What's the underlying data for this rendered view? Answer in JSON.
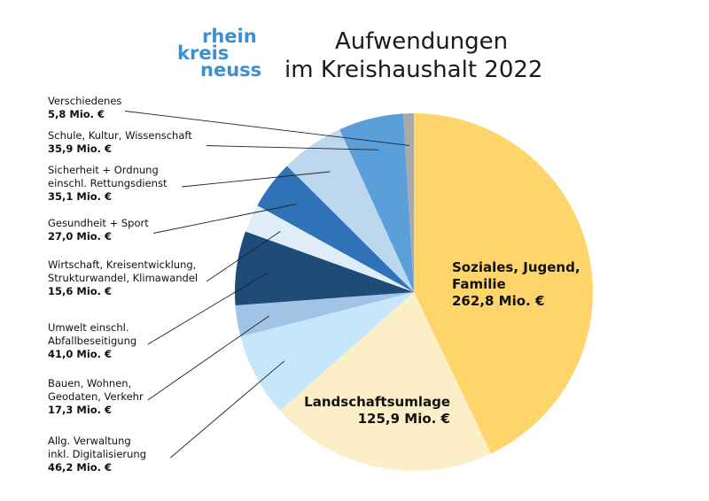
{
  "logo": {
    "line1": "rhein",
    "line2": "kreis",
    "line3": "neuss"
  },
  "title": {
    "line1": "Aufwendungen",
    "line2": "im Kreishaushalt 2022"
  },
  "chart_data": {
    "type": "pie",
    "unit": "Mio. €",
    "slices": [
      {
        "lines": [
          "Soziales, Jugend,",
          "Familie"
        ],
        "value_text": "262,8 Mio. €",
        "value": 262.8,
        "color": "#fdd56a",
        "label_mode": "inside"
      },
      {
        "lines": [
          "Landschaftsumlage"
        ],
        "value_text": "125,9 Mio. €",
        "value": 125.9,
        "color": "#fcefc7",
        "label_mode": "inside"
      },
      {
        "lines": [
          "Allg. Verwaltung",
          "inkl. Digitalisierung"
        ],
        "value_text": "46,2 Mio. €",
        "value": 46.2,
        "color": "#c6e6fa",
        "label_mode": "outside"
      },
      {
        "lines": [
          "Bauen, Wohnen,",
          "Geodaten, Verkehr"
        ],
        "value_text": "17,3 Mio. €",
        "value": 17.3,
        "color": "#a1c4e6",
        "label_mode": "outside"
      },
      {
        "lines": [
          "Umwelt einschl.",
          "Abfallbeseitigung"
        ],
        "value_text": "41,0 Mio. €",
        "value": 41.0,
        "color": "#1e4b78",
        "label_mode": "outside"
      },
      {
        "lines": [
          "Wirtschaft, Kreisentwicklung,",
          "Strukturwandel, Klimawandel"
        ],
        "value_text": "15,6 Mio. €",
        "value": 15.6,
        "color": "#deedf8",
        "label_mode": "outside"
      },
      {
        "lines": [
          "Gesundheit + Sport"
        ],
        "value_text": "27,0 Mio. €",
        "value": 27.0,
        "color": "#2f72b7",
        "label_mode": "outside"
      },
      {
        "lines": [
          "Sicherheit + Ordnung",
          "einschl. Rettungsdienst"
        ],
        "value_text": "35,1 Mio. €",
        "value": 35.1,
        "color": "#bcd7ee",
        "label_mode": "outside"
      },
      {
        "lines": [
          "Schule, Kultur, Wissenschaft"
        ],
        "value_text": "35,9 Mio. €",
        "value": 35.9,
        "color": "#5b9fda",
        "label_mode": "outside"
      },
      {
        "lines": [
          "Verschiedenes"
        ],
        "value_text": "5,8 Mio. €",
        "value": 5.8,
        "color": "#a9a9a9",
        "label_mode": "outside"
      }
    ]
  }
}
